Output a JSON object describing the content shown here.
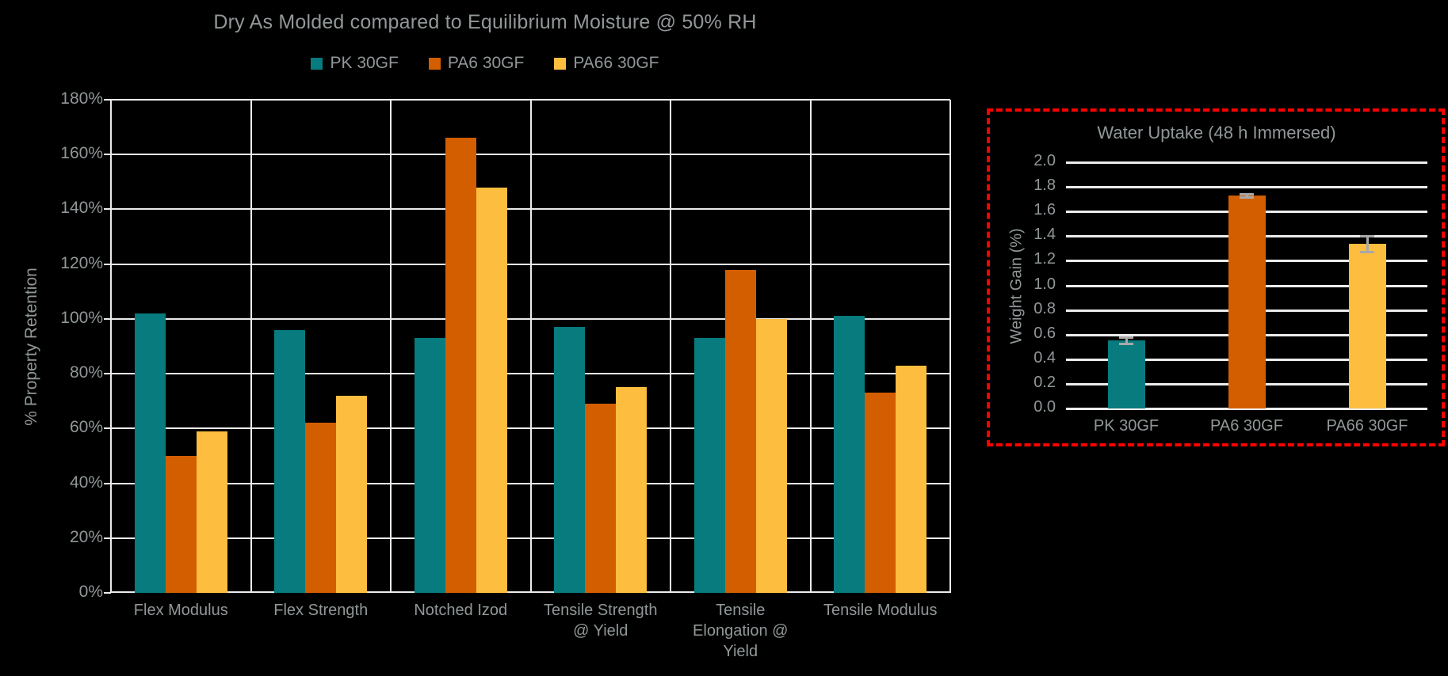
{
  "colors": {
    "background": "#000000",
    "text": "#919798",
    "gridline": "#ECECEC",
    "error_bar": "#A8A8A8",
    "inset_border": "#FF0000",
    "series_teal": "#077B7E",
    "series_orange": "#D35E00",
    "series_yellow": "#FDBD3F"
  },
  "chart_data": [
    {
      "type": "bar",
      "title": "Dry As Molded compared to Equilibrium Moisture @ 50% RH",
      "xlabel": "",
      "ylabel": "% Property Retention",
      "ylim": [
        0,
        180
      ],
      "ytick_step": 20,
      "ytick_suffix": "%",
      "grid": true,
      "legend_position": "top",
      "categories": [
        "Flex Modulus",
        "Flex Strength",
        "Notched Izod",
        "Tensile Strength @ Yield",
        "Tensile Elongation @ Yield",
        "Tensile Modulus"
      ],
      "category_label_lines": [
        [
          "Flex Modulus"
        ],
        [
          "Flex Strength"
        ],
        [
          "Notched Izod"
        ],
        [
          "Tensile Strength",
          "@ Yield"
        ],
        [
          "Tensile",
          "Elongation @",
          "Yield"
        ],
        [
          "Tensile Modulus"
        ]
      ],
      "series": [
        {
          "name": "PK 30GF",
          "color": "#077B7E",
          "values": [
            102,
            96,
            93,
            97,
            93,
            101
          ]
        },
        {
          "name": "PA6 30GF",
          "color": "#D35E00",
          "values": [
            50,
            62,
            166,
            69,
            118,
            73
          ]
        },
        {
          "name": "PA66 30GF",
          "color": "#FDBD3F",
          "values": [
            59,
            72,
            148,
            75,
            100,
            83
          ]
        }
      ]
    },
    {
      "type": "bar",
      "title": "Water Uptake (48 h Immersed)",
      "xlabel": "",
      "ylabel": "Weight Gain (%)",
      "ylim": [
        0,
        2.0
      ],
      "ytick_step": 0.2,
      "ytick_decimals": 1,
      "grid": true,
      "legend_position": "none",
      "categories": [
        "PK 30GF",
        "PA6 30GF",
        "PA66 30GF"
      ],
      "values": [
        0.55,
        1.73,
        1.34
      ],
      "errors": [
        0.03,
        0.02,
        0.07
      ],
      "bar_colors": [
        "#077B7E",
        "#D35E00",
        "#FDBD3F"
      ]
    }
  ]
}
